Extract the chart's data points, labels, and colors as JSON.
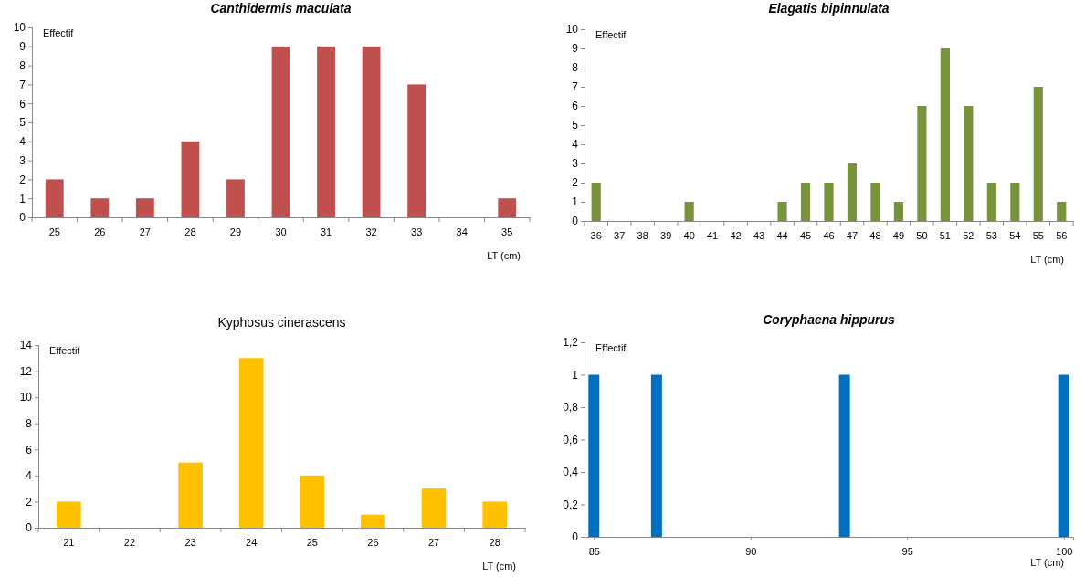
{
  "chart_data": [
    {
      "type": "bar",
      "title": "Canthidermis maculata",
      "xlabel": "LT (cm)",
      "ylabel": "Effectif",
      "categories": [
        "25",
        "26",
        "27",
        "28",
        "29",
        "30",
        "31",
        "32",
        "33",
        "34",
        "35"
      ],
      "values": [
        2,
        1,
        1,
        4,
        2,
        9,
        9,
        9,
        7,
        0,
        1
      ],
      "color": "#c0504d",
      "ylim": [
        0,
        10
      ],
      "yticks": [
        0,
        1,
        2,
        3,
        4,
        5,
        6,
        7,
        8,
        9,
        10
      ],
      "grid": false
    },
    {
      "type": "bar",
      "title": "Elagatis bipinnulata",
      "xlabel": "LT (cm)",
      "ylabel": "Effectif",
      "categories": [
        "36",
        "37",
        "38",
        "39",
        "40",
        "41",
        "42",
        "43",
        "44",
        "45",
        "46",
        "47",
        "48",
        "49",
        "50",
        "51",
        "52",
        "53",
        "54",
        "55",
        "56"
      ],
      "values": [
        2,
        0,
        0,
        0,
        1,
        0,
        0,
        0,
        1,
        2,
        2,
        3,
        2,
        1,
        6,
        9,
        6,
        2,
        2,
        7,
        1
      ],
      "color": "#77933c",
      "ylim": [
        0,
        10
      ],
      "yticks": [
        0,
        1,
        2,
        3,
        4,
        5,
        6,
        7,
        8,
        9,
        10
      ],
      "grid": false
    },
    {
      "type": "bar",
      "title": "Kyphosus cinerascens",
      "xlabel": "LT (cm)",
      "ylabel": "Effectif",
      "categories": [
        "21",
        "22",
        "23",
        "24",
        "25",
        "26",
        "27",
        "28"
      ],
      "values": [
        2,
        0,
        5,
        13,
        4,
        1,
        3,
        2
      ],
      "color": "#ffc000",
      "ylim": [
        0,
        14
      ],
      "yticks": [
        0,
        2,
        4,
        6,
        8,
        10,
        12,
        14
      ],
      "grid": false
    },
    {
      "type": "bar",
      "title": "Coryphaena hippurus",
      "xlabel": "LT (cm)",
      "ylabel": "Effectif",
      "x": [
        85,
        87,
        93,
        100
      ],
      "values": [
        1,
        1,
        1,
        1
      ],
      "color": "#0070c0",
      "xlim": [
        84.7,
        100.3
      ],
      "xticks": [
        85,
        90,
        95,
        100
      ],
      "ylim": [
        0,
        1.2
      ],
      "yticks": [
        0,
        {
          "value": 0.2,
          "label": "0,2"
        },
        {
          "value": 0.4,
          "label": "0,4"
        },
        {
          "value": 0.6,
          "label": "0,6"
        },
        {
          "value": 0.8,
          "label": "0,8"
        },
        1,
        {
          "value": 1.2,
          "label": "1,2"
        }
      ],
      "grid": false
    }
  ]
}
